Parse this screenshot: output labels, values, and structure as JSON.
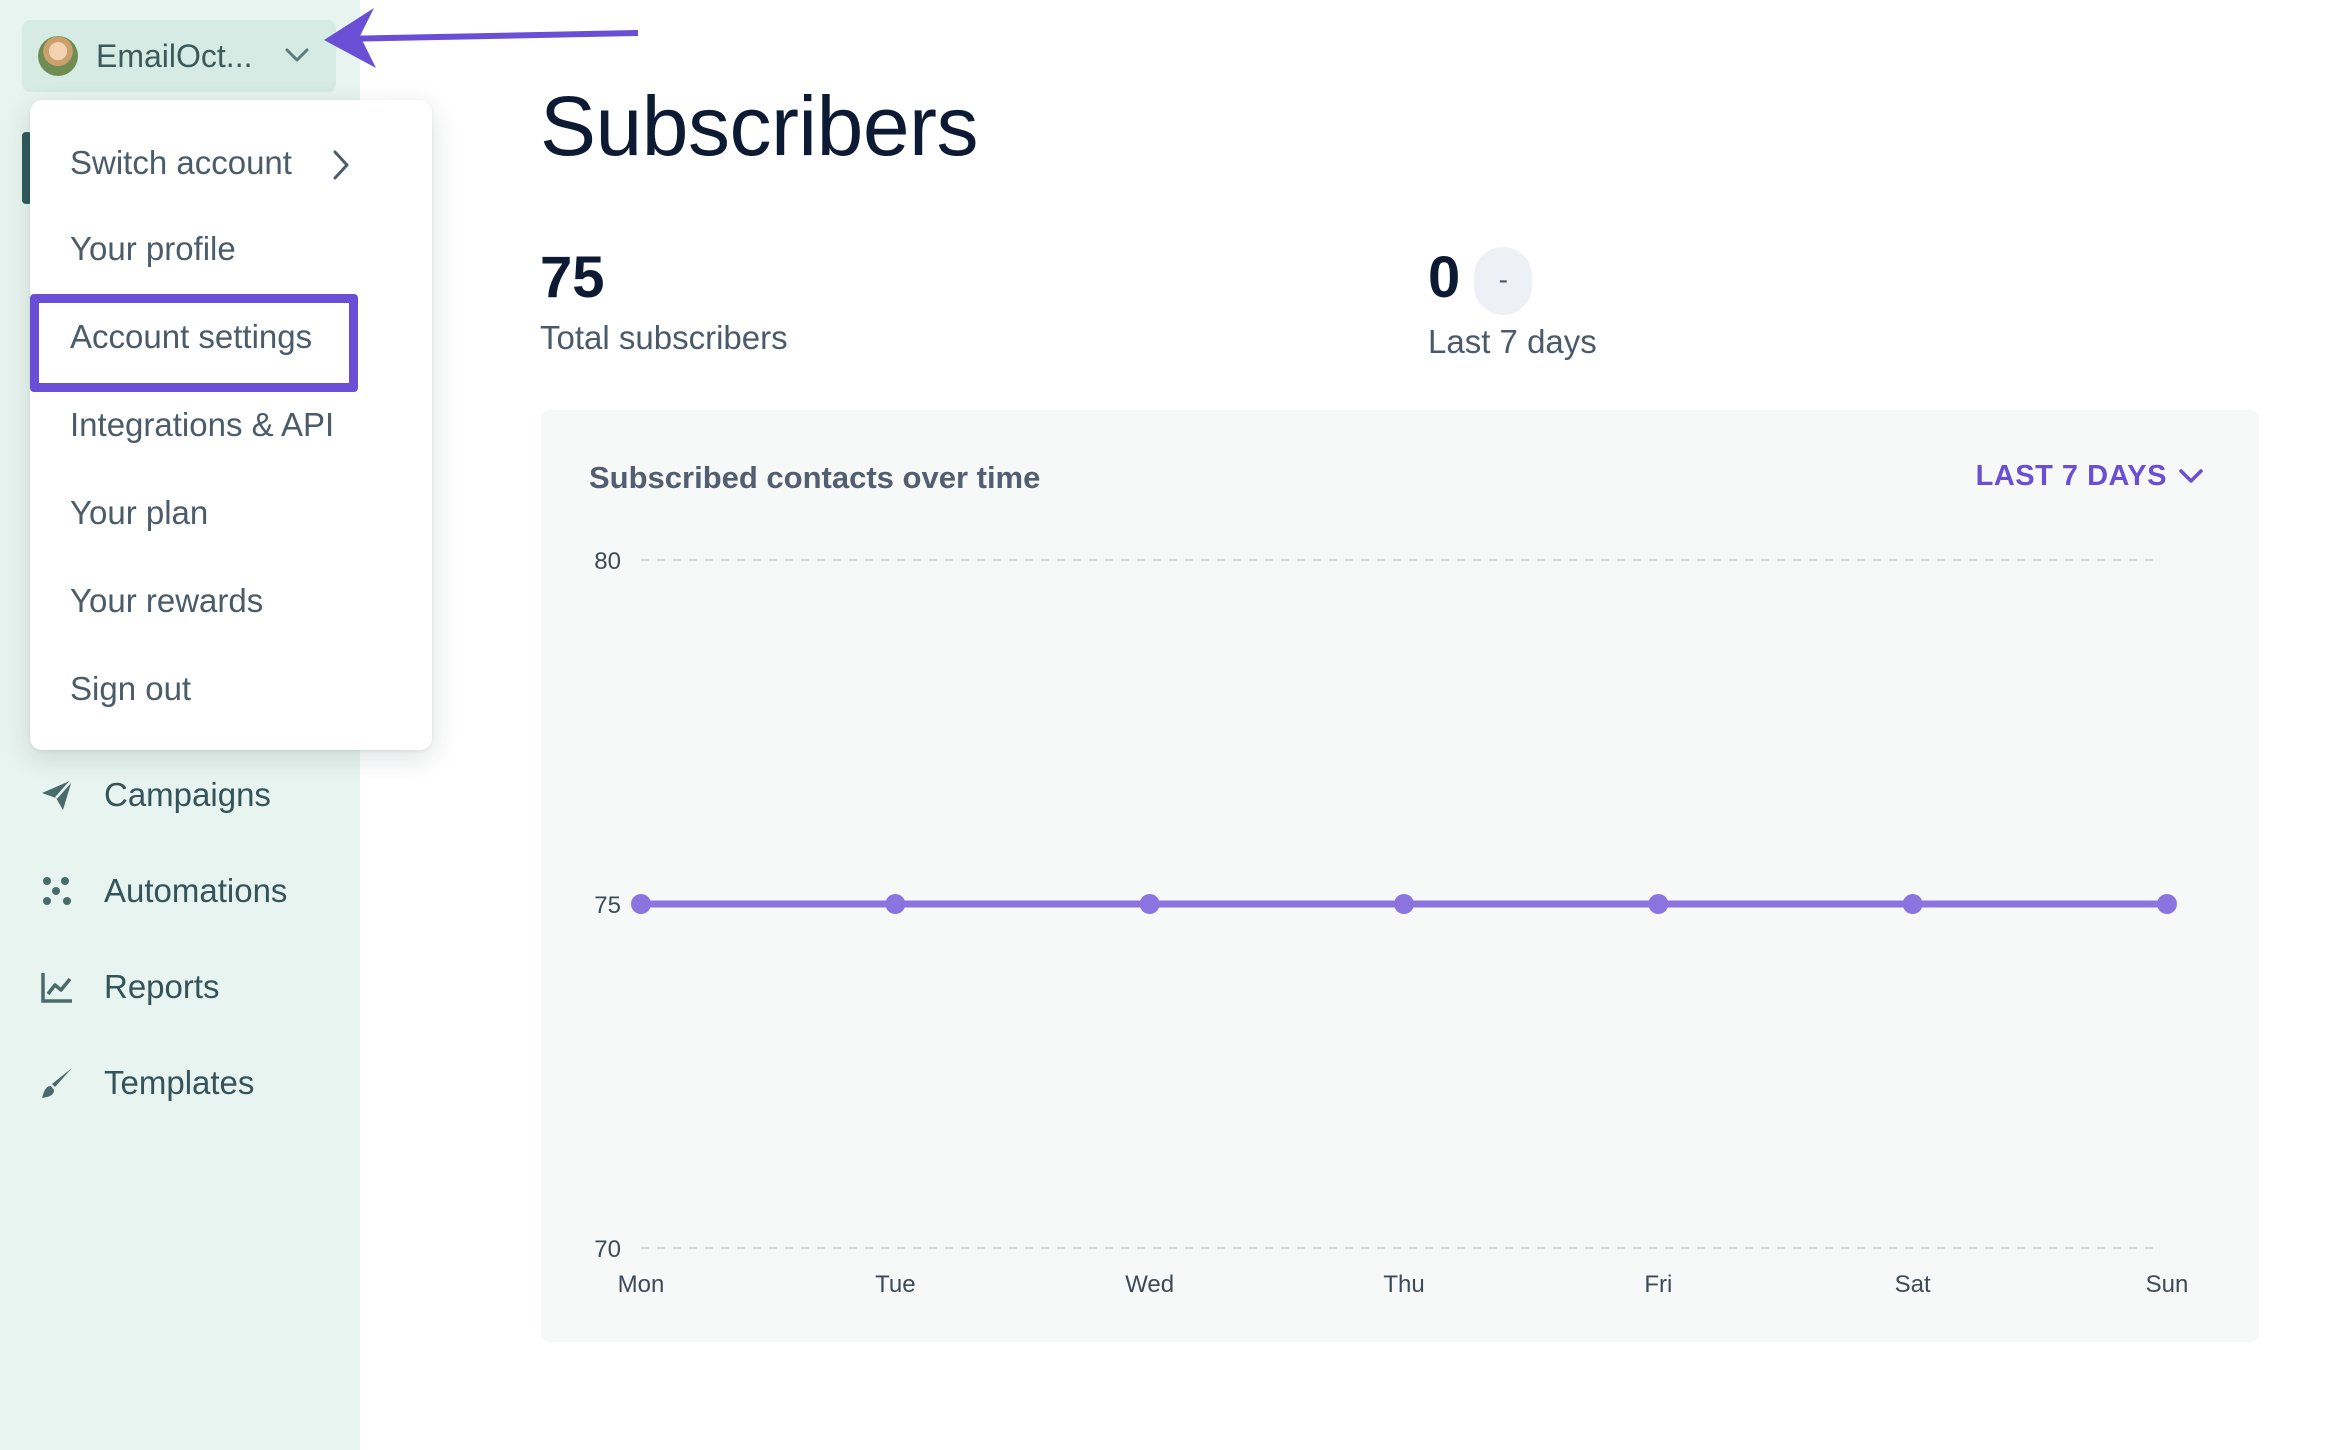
{
  "sidebar": {
    "account_name": "EmailOct...",
    "nav": [
      {
        "label": "Campaigns",
        "icon": "paper-plane-icon"
      },
      {
        "label": "Automations",
        "icon": "automation-icon"
      },
      {
        "label": "Reports",
        "icon": "chart-icon"
      },
      {
        "label": "Templates",
        "icon": "brush-icon"
      }
    ]
  },
  "menu": {
    "items": [
      {
        "label": "Switch account",
        "has_submenu": true
      },
      {
        "label": "Your profile"
      },
      {
        "label": "Account settings",
        "highlighted": true
      },
      {
        "label": "Integrations & API"
      },
      {
        "label": "Your plan"
      },
      {
        "label": "Your rewards"
      },
      {
        "label": "Sign out"
      }
    ]
  },
  "page": {
    "title": "Subscribers",
    "stats": [
      {
        "value": "75",
        "label": "Total subscribers"
      },
      {
        "value": "0",
        "badge": "-",
        "label": "Last 7 days"
      }
    ]
  },
  "chart": {
    "title": "Subscribed contacts over time",
    "range_label": "LAST 7 DAYS"
  },
  "chart_data": {
    "type": "line",
    "categories": [
      "Mon",
      "Tue",
      "Wed",
      "Thu",
      "Fri",
      "Sat",
      "Sun"
    ],
    "values": [
      75,
      75,
      75,
      75,
      75,
      75,
      75
    ],
    "yticks": [
      70,
      75,
      80
    ],
    "ylim": [
      70,
      80
    ],
    "grid": "horizontal-dashed",
    "color": "#8b74e0"
  },
  "colors": {
    "accent": "#6a4fd6",
    "sidebar_bg": "#e8f4ef",
    "line": "#8b74e0"
  }
}
